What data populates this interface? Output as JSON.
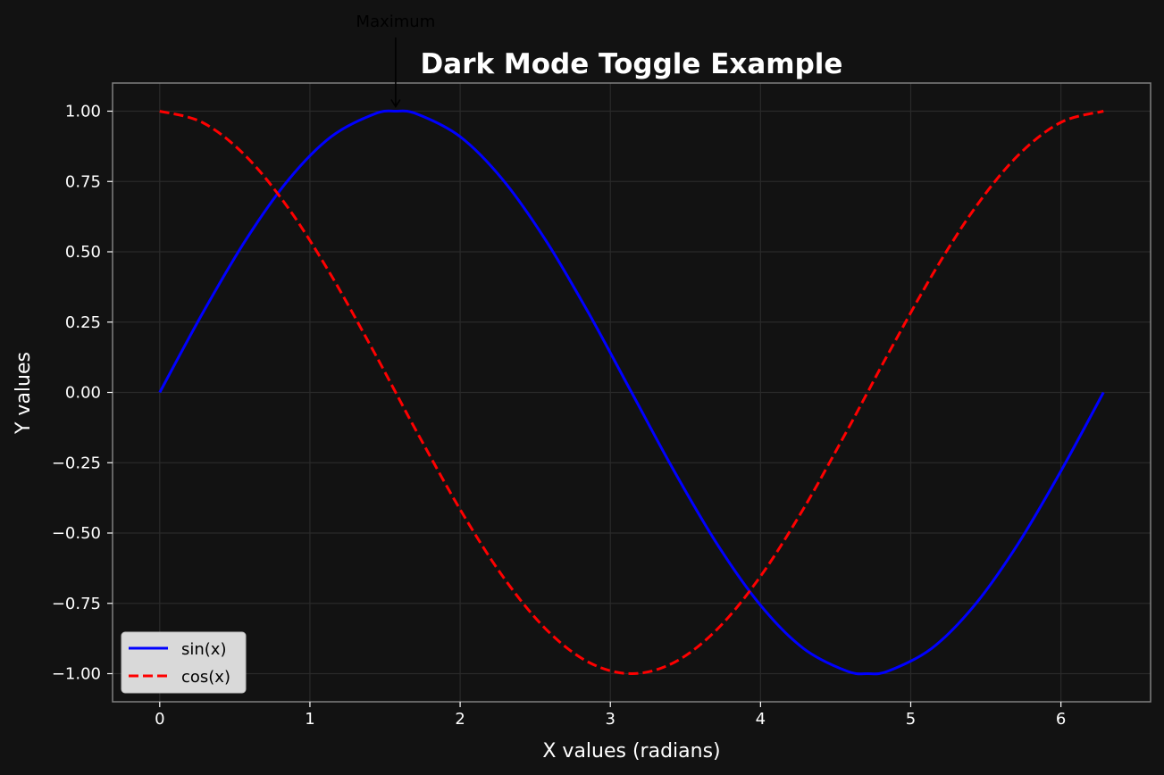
{
  "chart_data": {
    "type": "line",
    "title": "Dark Mode Toggle Example",
    "xlabel": "X values (radians)",
    "ylabel": "Y values",
    "xlim": [
      -0.314,
      6.597
    ],
    "ylim": [
      -1.1,
      1.1
    ],
    "x_ticks": [
      {
        "value": 0,
        "label": "0"
      },
      {
        "value": 1,
        "label": "1"
      },
      {
        "value": 2,
        "label": "2"
      },
      {
        "value": 3,
        "label": "3"
      },
      {
        "value": 4,
        "label": "4"
      },
      {
        "value": 5,
        "label": "5"
      },
      {
        "value": 6,
        "label": "6"
      }
    ],
    "y_ticks": [
      {
        "value": 1.0,
        "label": "1.00"
      },
      {
        "value": 0.75,
        "label": "0.75"
      },
      {
        "value": 0.5,
        "label": "0.50"
      },
      {
        "value": 0.25,
        "label": "0.25"
      },
      {
        "value": 0.0,
        "label": "0.00"
      },
      {
        "value": -0.25,
        "label": "−0.25"
      },
      {
        "value": -0.5,
        "label": "−0.50"
      },
      {
        "value": -0.75,
        "label": "−0.75"
      },
      {
        "value": -1.0,
        "label": "−1.00"
      }
    ],
    "grid": true,
    "legend_position": "lower-left",
    "series": [
      {
        "name": "sin(x)",
        "color": "#0000ff",
        "linestyle": "solid",
        "x": [
          0,
          0.2856,
          0.5712,
          0.8568,
          1.1424,
          1.428,
          1.5708,
          1.7136,
          1.9992,
          2.2848,
          2.5704,
          2.856,
          3.1416,
          3.4272,
          3.7128,
          3.9984,
          4.284,
          4.5696,
          4.7124,
          4.8552,
          5.1408,
          5.4264,
          5.712,
          5.9976,
          6.2832
        ],
        "y": [
          0,
          0.2817,
          0.5406,
          0.7557,
          0.9096,
          0.9898,
          1.0,
          0.9898,
          0.9096,
          0.7557,
          0.5406,
          0.2817,
          0,
          -0.2817,
          -0.5406,
          -0.7557,
          -0.9096,
          -0.9898,
          -1.0,
          -0.9898,
          -0.9096,
          -0.7557,
          -0.5406,
          -0.2817,
          0
        ]
      },
      {
        "name": "cos(x)",
        "color": "#ff0000",
        "linestyle": "dashed",
        "x": [
          0,
          0.2856,
          0.5712,
          0.8568,
          1.1424,
          1.428,
          1.5708,
          1.7136,
          1.9992,
          2.2848,
          2.5704,
          2.856,
          3.1416,
          3.4272,
          3.7128,
          3.9984,
          4.284,
          4.5696,
          4.7124,
          4.8552,
          5.1408,
          5.4264,
          5.712,
          5.9976,
          6.2832
        ],
        "y": [
          1.0,
          0.9595,
          0.8413,
          0.6549,
          0.4154,
          0.1423,
          0,
          -0.1423,
          -0.4154,
          -0.6549,
          -0.8413,
          -0.9595,
          -1.0,
          -0.9595,
          -0.8413,
          -0.6549,
          -0.4154,
          -0.1423,
          0,
          0.1423,
          0.4154,
          0.6549,
          0.8413,
          0.9595,
          1.0
        ]
      }
    ],
    "annotations": [
      {
        "text": "Maximum",
        "x": 1.5708,
        "y": 1.0,
        "arrow": true
      }
    ]
  },
  "colors": {
    "background": "#121212",
    "axes_face": "#121212",
    "grid": "#2a2a2a",
    "spine": "#808080",
    "text": "#ffffff",
    "legend_bg": "#d9d9d9"
  }
}
